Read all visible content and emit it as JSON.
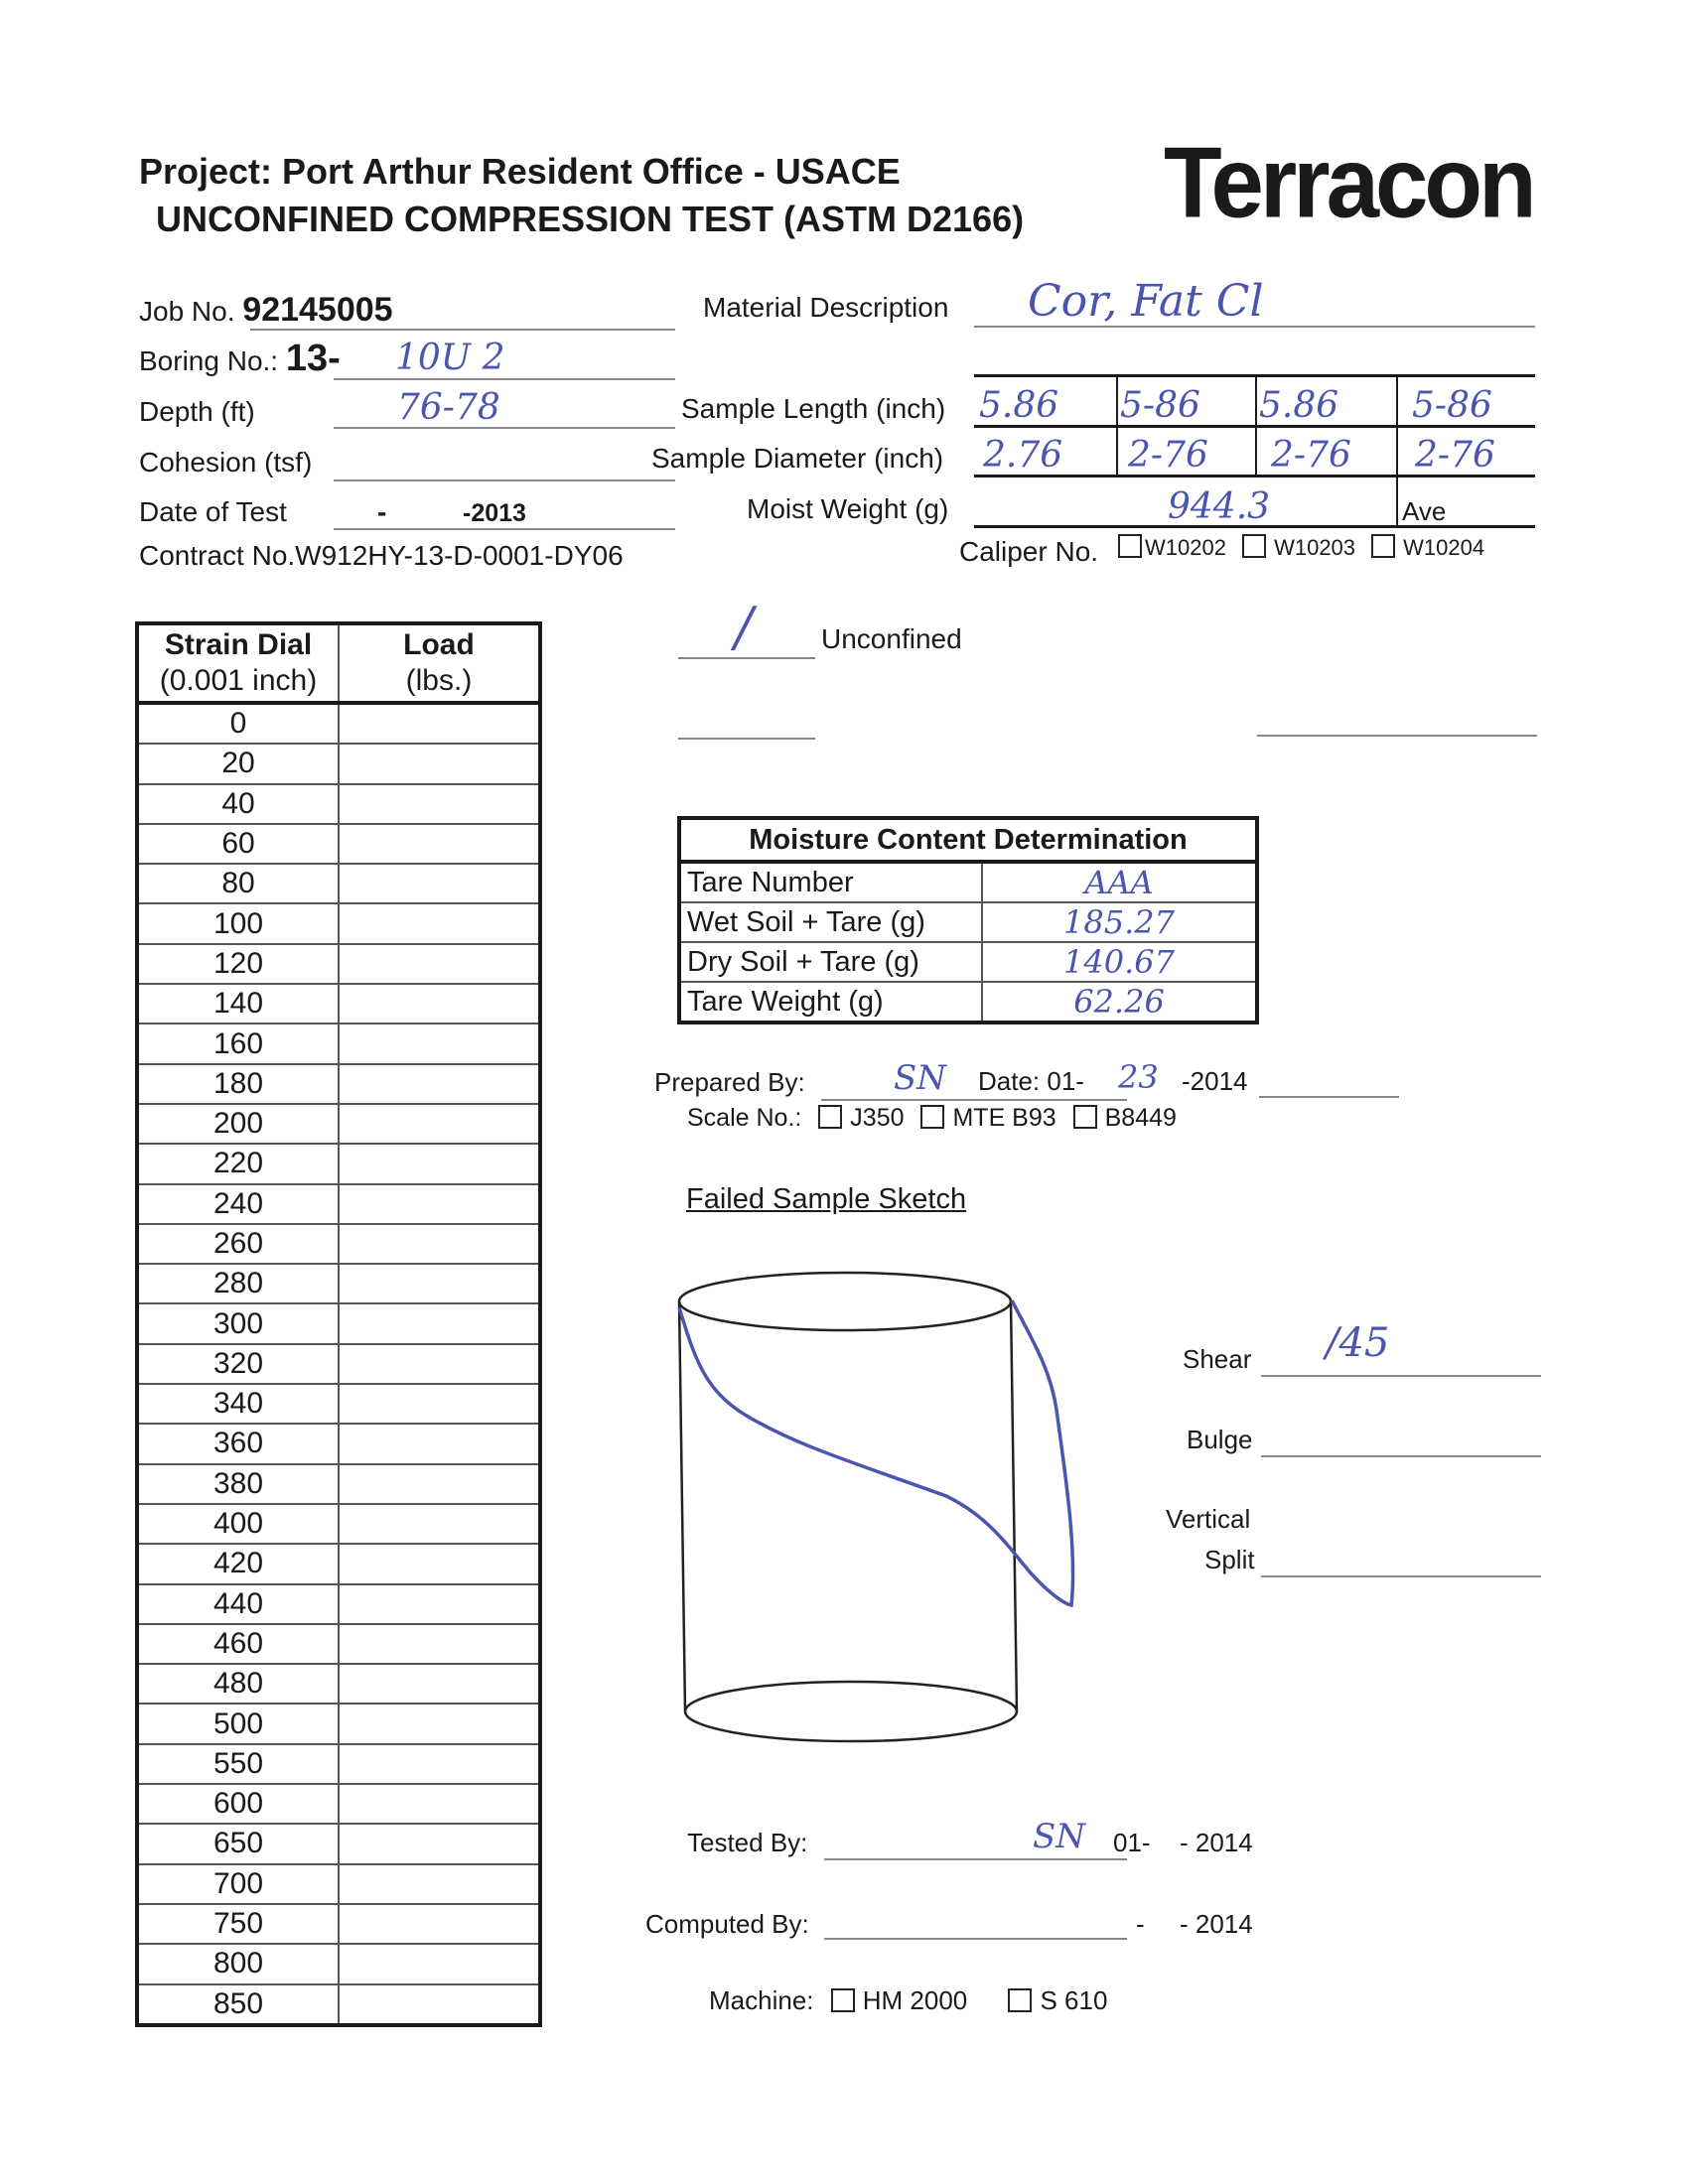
{
  "header": {
    "project": "Project: Port Arthur Resident Office   -  USACE",
    "title": "UNCONFINED COMPRESSION TEST (ASTM D2166)",
    "logo": "Terracon"
  },
  "info": {
    "job_label": "Job No.",
    "job_value": "92145005",
    "boring_label": "Boring No.:",
    "boring_prefix": "13-",
    "boring_value": "10U 2",
    "depth_label": "Depth (ft)",
    "depth_value": "76-78",
    "cohesion_label": "Cohesion (tsf)",
    "date_label": "Date of Test",
    "date_dash": "-",
    "date_year": "-2013",
    "contract": "Contract No.W912HY-13-D-0001-DY06"
  },
  "sample": {
    "material_label": "Material Description",
    "material_value": "Cor, Fat Cl",
    "length_label": "Sample Length (inch)",
    "lengths": [
      "5.86",
      "5-86",
      "5.86",
      "5-86"
    ],
    "diameter_label": "Sample Diameter (inch)",
    "diameters": [
      "2.76",
      "2-76",
      "2-76",
      "2-76"
    ],
    "moist_label": "Moist Weight (g)",
    "moist_value": "944.3",
    "ave_label": "Ave",
    "caliper_label": "Caliper No.",
    "calipers": [
      "W10202",
      "W10203",
      "W10204"
    ]
  },
  "strain_table": {
    "col1_title": "Strain Dial",
    "col1_unit": "(0.001 inch)",
    "col2_title": "Load",
    "col2_unit": "(lbs.)",
    "dial": [
      "0",
      "20",
      "40",
      "60",
      "80",
      "100",
      "120",
      "140",
      "160",
      "180",
      "200",
      "220",
      "240",
      "260",
      "280",
      "300",
      "320",
      "340",
      "360",
      "380",
      "400",
      "420",
      "440",
      "460",
      "480",
      "500",
      "550",
      "600",
      "650",
      "700",
      "750",
      "800",
      "850"
    ]
  },
  "test_type": {
    "unconfined_label": "Unconfined",
    "unconfined_mark": "/"
  },
  "moisture": {
    "title": "Moisture Content Determination",
    "rows": [
      {
        "label": "Tare Number",
        "value": "AAA"
      },
      {
        "label": "Wet Soil + Tare (g)",
        "value": "185.27"
      },
      {
        "label": "Dry Soil + Tare (g)",
        "value": "140.67"
      },
      {
        "label": "Tare Weight (g)",
        "value": "62.26"
      }
    ]
  },
  "prepared": {
    "label": "Prepared By:",
    "initials": "SN",
    "date_label": "Date: 01-",
    "day": "23",
    "year": "-2014",
    "scale_label": "Scale No.:",
    "scales": [
      "J350",
      "MTE B93",
      "B8449"
    ]
  },
  "sketch": {
    "title": "Failed Sample Sketch",
    "shear_label": "Shear",
    "shear_value": "/45",
    "bulge_label": "Bulge",
    "vertical_label": "Vertical",
    "split_label": "Split"
  },
  "footer": {
    "tested_label": "Tested By:",
    "tested_initials": "SN",
    "tested_date": "01-",
    "tested_year": "- 2014",
    "computed_label": "Computed By:",
    "computed_dash": "-",
    "computed_year": "- 2014",
    "machine_label": "Machine:",
    "machines": [
      "HM 2000",
      "S 610"
    ]
  },
  "colors": {
    "ink": "#4a55b0",
    "text": "#1a1a1a"
  }
}
